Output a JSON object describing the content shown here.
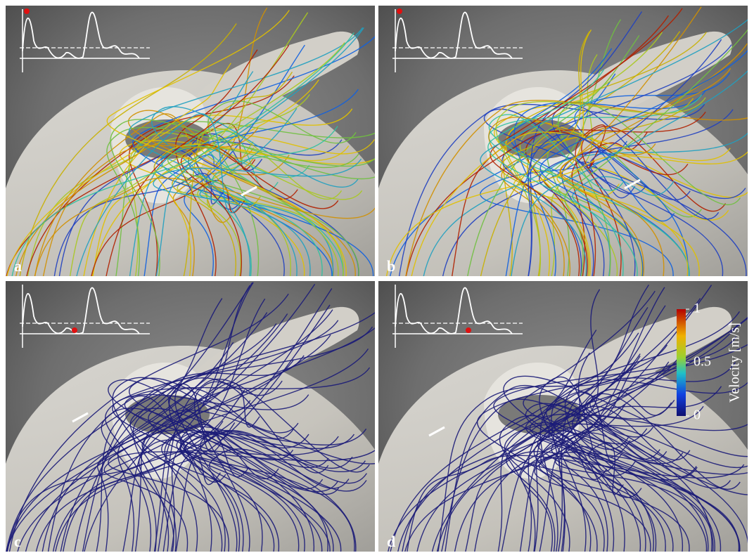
{
  "panels": [
    {
      "label": "a"
    },
    {
      "label": "b"
    },
    {
      "label": "c"
    },
    {
      "label": "d"
    }
  ],
  "colorbar": {
    "title": "Velocity [m/s]",
    "ticks": [
      1,
      0.5,
      0
    ]
  }
}
